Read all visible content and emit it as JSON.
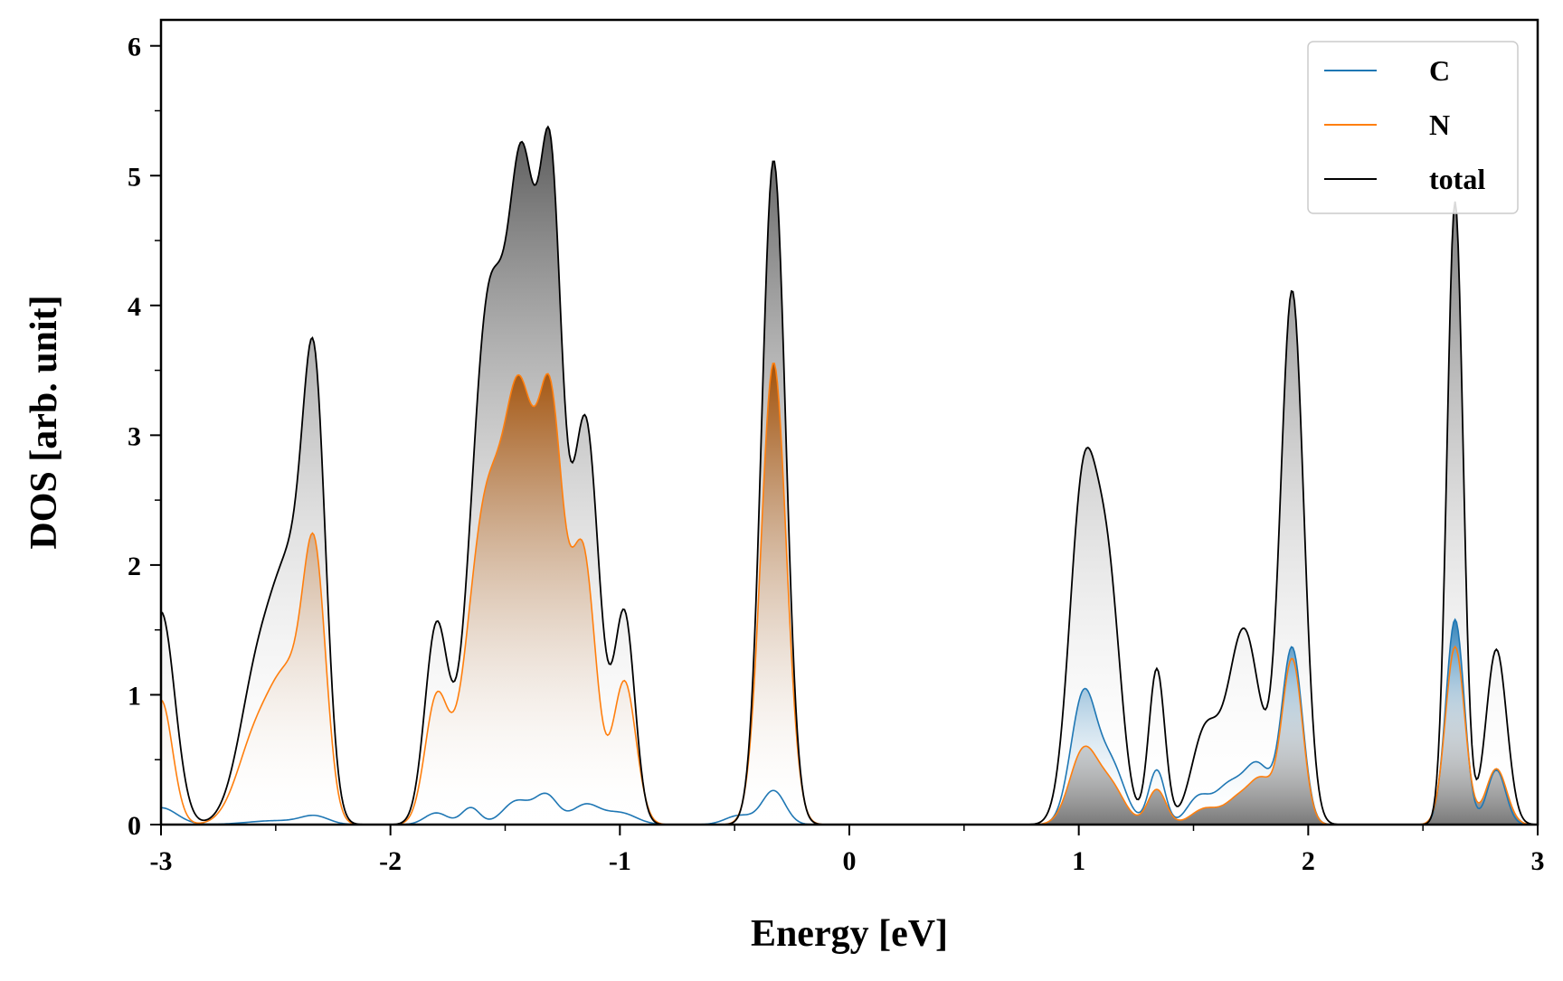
{
  "chart_data": {
    "type": "area",
    "title": "",
    "xlabel": "Energy [eV]",
    "ylabel": "DOS [arb. unit]",
    "xlim": [
      -3,
      3
    ],
    "ylim": [
      0,
      6.2
    ],
    "xticks": [
      -3,
      -2,
      -1,
      0,
      1,
      2,
      3
    ],
    "xtick_labels": [
      "-3",
      "-2",
      "-1",
      "0",
      "1",
      "2",
      "3"
    ],
    "yticks": [
      0,
      1,
      2,
      3,
      4,
      5,
      6
    ],
    "ytick_labels": [
      "0",
      "1",
      "2",
      "3",
      "4",
      "5",
      "6"
    ],
    "grid": false,
    "legend_position": "top-right",
    "series": [
      {
        "name": "C",
        "color": "#1f77b4",
        "peaks": [
          [
            -3.0,
            0.13,
            0.07
          ],
          [
            -2.5,
            0.03,
            0.12
          ],
          [
            -2.33,
            0.06,
            0.06
          ],
          [
            -1.8,
            0.09,
            0.05
          ],
          [
            -1.65,
            0.13,
            0.04
          ],
          [
            -1.45,
            0.18,
            0.06
          ],
          [
            -1.32,
            0.22,
            0.05
          ],
          [
            -1.15,
            0.15,
            0.06
          ],
          [
            -1.0,
            0.09,
            0.07
          ],
          [
            -0.48,
            0.07,
            0.06
          ],
          [
            -0.33,
            0.26,
            0.05
          ],
          [
            1.02,
            0.98,
            0.055
          ],
          [
            1.14,
            0.45,
            0.06
          ],
          [
            1.34,
            0.42,
            0.035
          ],
          [
            1.52,
            0.2,
            0.05
          ],
          [
            1.65,
            0.28,
            0.06
          ],
          [
            1.78,
            0.45,
            0.06
          ],
          [
            1.93,
            1.35,
            0.045
          ],
          [
            2.64,
            1.58,
            0.04
          ],
          [
            2.82,
            0.42,
            0.04
          ]
        ]
      },
      {
        "name": "N",
        "color": "#ff7f0e",
        "peaks": [
          [
            -3.0,
            0.96,
            0.05
          ],
          [
            -2.58,
            0.68,
            0.085
          ],
          [
            -2.44,
            0.95,
            0.075
          ],
          [
            -2.33,
            1.88,
            0.05
          ],
          [
            -1.8,
            0.93,
            0.05
          ],
          [
            -1.58,
            2.45,
            0.085
          ],
          [
            -1.43,
            2.75,
            0.065
          ],
          [
            -1.3,
            2.95,
            0.055
          ],
          [
            -1.16,
            2.05,
            0.055
          ],
          [
            -0.98,
            1.1,
            0.05
          ],
          [
            -0.33,
            3.56,
            0.055
          ],
          [
            1.02,
            0.56,
            0.06
          ],
          [
            1.14,
            0.28,
            0.06
          ],
          [
            1.34,
            0.27,
            0.04
          ],
          [
            1.55,
            0.12,
            0.06
          ],
          [
            1.7,
            0.2,
            0.06
          ],
          [
            1.8,
            0.3,
            0.05
          ],
          [
            1.93,
            1.27,
            0.045
          ],
          [
            2.64,
            1.37,
            0.042
          ],
          [
            2.82,
            0.43,
            0.045
          ]
        ]
      },
      {
        "name": "total",
        "color": "#000000",
        "peaks": [
          [
            -3.0,
            1.64,
            0.06
          ],
          [
            -2.57,
            1.2,
            0.085
          ],
          [
            -2.43,
            1.6,
            0.075
          ],
          [
            -2.33,
            3.0,
            0.05
          ],
          [
            -1.8,
            1.5,
            0.05
          ],
          [
            -1.57,
            4.0,
            0.08
          ],
          [
            -1.42,
            4.3,
            0.06
          ],
          [
            -1.3,
            4.55,
            0.05
          ],
          [
            -1.15,
            3.1,
            0.06
          ],
          [
            -0.98,
            1.6,
            0.045
          ],
          [
            -0.33,
            5.12,
            0.052
          ],
          [
            1.02,
            2.6,
            0.06
          ],
          [
            1.13,
            1.7,
            0.055
          ],
          [
            1.34,
            1.2,
            0.035
          ],
          [
            1.55,
            0.7,
            0.06
          ],
          [
            1.72,
            1.5,
            0.07
          ],
          [
            1.93,
            4.1,
            0.05
          ],
          [
            2.64,
            4.8,
            0.035
          ],
          [
            2.82,
            1.35,
            0.045
          ]
        ]
      }
    ]
  }
}
